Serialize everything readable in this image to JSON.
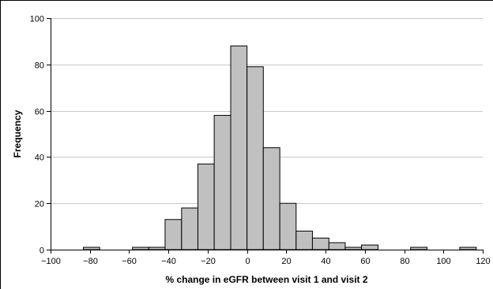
{
  "chart_data": {
    "type": "bar",
    "subtype": "histogram",
    "xlabel": "% change in eGFR between visit 1 and visit 2",
    "ylabel": "Frequency",
    "xlim": [
      -100,
      120
    ],
    "ylim": [
      0,
      100
    ],
    "x_ticks": [
      -100,
      -80,
      -60,
      -40,
      -20,
      0,
      20,
      40,
      60,
      80,
      100,
      120
    ],
    "y_ticks": [
      0,
      20,
      40,
      60,
      80,
      100
    ],
    "bin_width": 8.33,
    "grid": "horizontal",
    "bar_color": "#c0c0c0",
    "bar_edge_color": "#000000",
    "bins": [
      {
        "x0": -83.3,
        "x1": -75.0,
        "count": 1
      },
      {
        "x0": -58.3,
        "x1": -50.0,
        "count": 1
      },
      {
        "x0": -50.0,
        "x1": -41.7,
        "count": 1
      },
      {
        "x0": -41.7,
        "x1": -33.3,
        "count": 13
      },
      {
        "x0": -33.3,
        "x1": -25.0,
        "count": 18
      },
      {
        "x0": -25.0,
        "x1": -16.7,
        "count": 37
      },
      {
        "x0": -16.7,
        "x1": -8.3,
        "count": 58
      },
      {
        "x0": -8.3,
        "x1": 0.0,
        "count": 88
      },
      {
        "x0": 0.0,
        "x1": 8.3,
        "count": 79
      },
      {
        "x0": 8.3,
        "x1": 16.7,
        "count": 44
      },
      {
        "x0": 16.7,
        "x1": 25.0,
        "count": 20
      },
      {
        "x0": 25.0,
        "x1": 33.3,
        "count": 8
      },
      {
        "x0": 33.3,
        "x1": 41.7,
        "count": 5
      },
      {
        "x0": 41.7,
        "x1": 50.0,
        "count": 3
      },
      {
        "x0": 50.0,
        "x1": 58.3,
        "count": 1
      },
      {
        "x0": 58.3,
        "x1": 66.7,
        "count": 2
      },
      {
        "x0": 83.3,
        "x1": 91.7,
        "count": 1
      },
      {
        "x0": 108.3,
        "x1": 116.7,
        "count": 1
      }
    ]
  }
}
